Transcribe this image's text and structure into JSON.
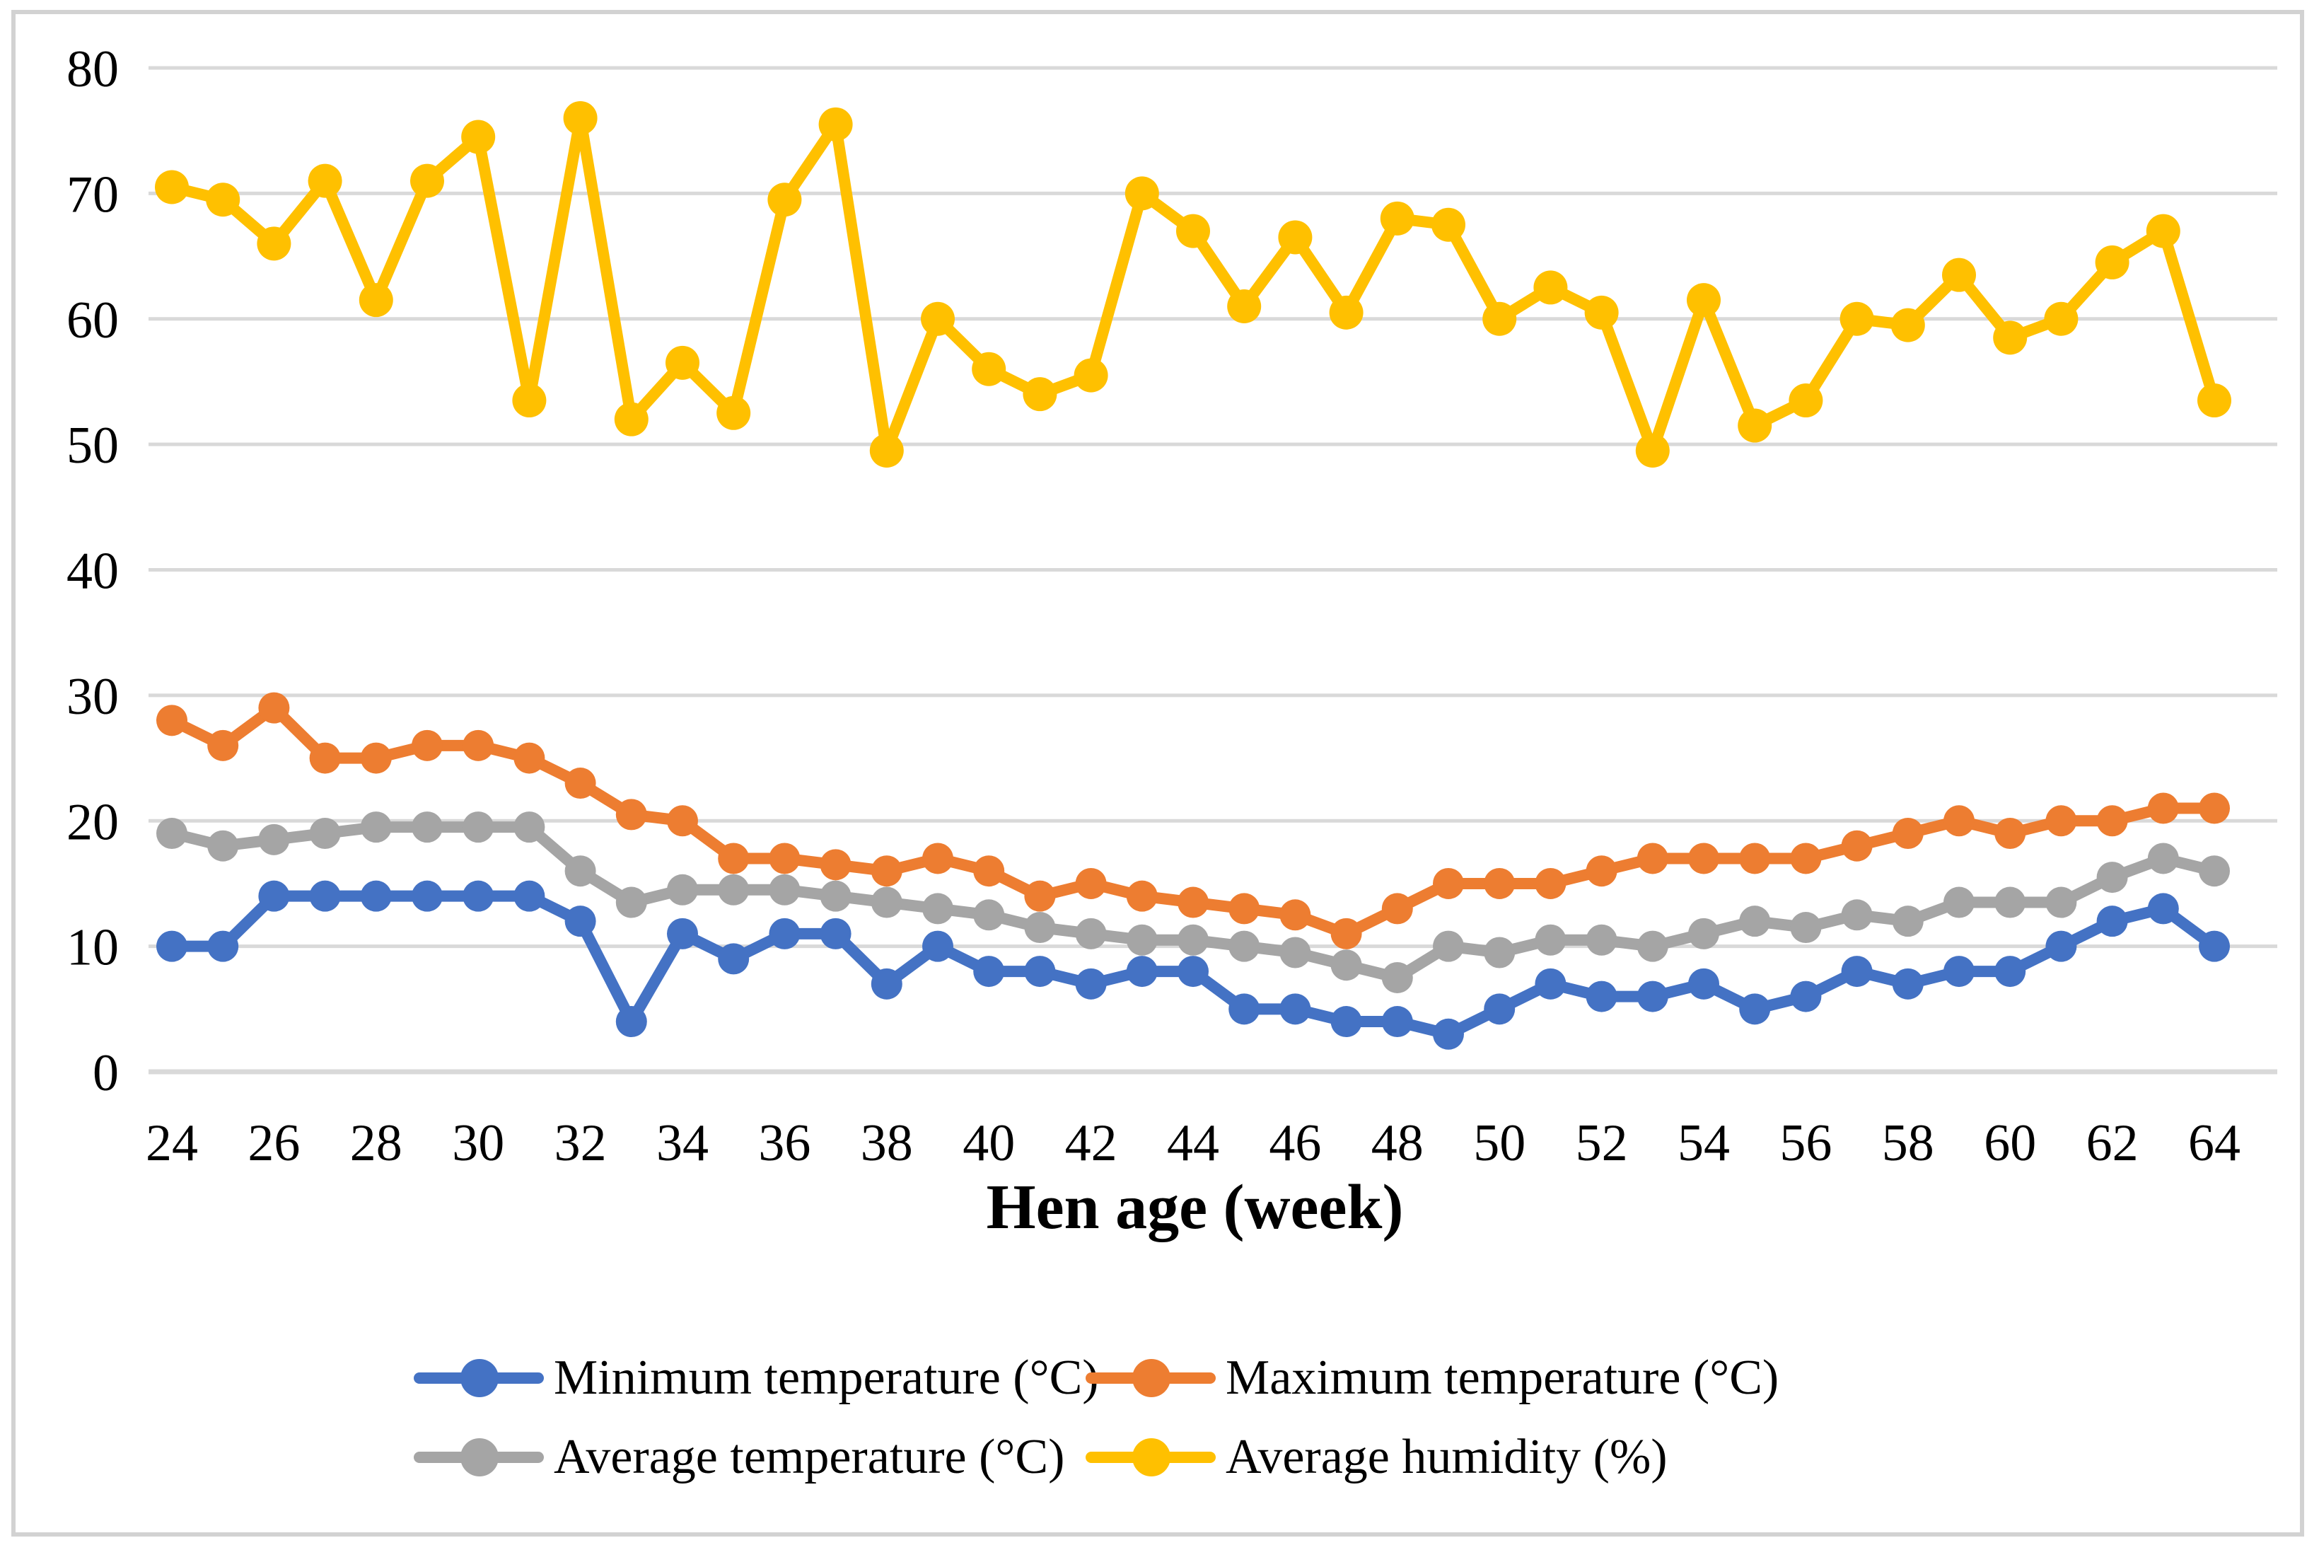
{
  "figure": {
    "background": "#ffffff",
    "frame_color": "#d2d2d2",
    "gridline_color": "#d9d9d9",
    "text_color": "#000000"
  },
  "chart_data": {
    "type": "line",
    "title": "",
    "xlabel": "Hen age (week)",
    "ylabel": "",
    "ylim": [
      0,
      80
    ],
    "y_ticks": [
      0,
      10,
      20,
      30,
      40,
      50,
      60,
      70,
      80
    ],
    "x": [
      24,
      25,
      26,
      27,
      28,
      29,
      30,
      31,
      32,
      33,
      34,
      35,
      36,
      37,
      38,
      39,
      40,
      41,
      42,
      43,
      44,
      45,
      46,
      47,
      48,
      49,
      50,
      51,
      52,
      53,
      54,
      55,
      56,
      57,
      58,
      59,
      60,
      61,
      62,
      63,
      64
    ],
    "x_tick_labels": [
      24,
      26,
      28,
      30,
      32,
      34,
      36,
      38,
      40,
      42,
      44,
      46,
      48,
      50,
      52,
      54,
      56,
      58,
      60,
      62,
      64
    ],
    "grid": true,
    "legend_position": "bottom",
    "series": [
      {
        "name": "Minimum temperature (°C)",
        "slug": "minimum-temperature",
        "color": "#4472c4",
        "values": [
          10,
          10,
          14,
          14,
          14,
          14,
          14,
          14,
          12,
          4,
          11,
          9,
          11,
          11,
          7,
          10,
          8,
          8,
          7,
          8,
          8,
          5,
          5,
          4,
          4,
          3,
          5,
          7,
          6,
          6,
          7,
          5,
          6,
          8,
          7,
          8,
          8,
          10,
          12,
          13,
          10
        ]
      },
      {
        "name": "Maximum temperature (°C)",
        "slug": "maximum-temperature",
        "color": "#ed7d31",
        "values": [
          28,
          26,
          29,
          25,
          25,
          26,
          26,
          25,
          23,
          20.5,
          20,
          17,
          17,
          16.5,
          16,
          17,
          16,
          14,
          15,
          14,
          13.5,
          13,
          12.5,
          11,
          13,
          15,
          15,
          15,
          16,
          17,
          17,
          17,
          17,
          18,
          19,
          20,
          19,
          20,
          20,
          21,
          21
        ]
      },
      {
        "name": "Average temperature (°C)",
        "slug": "average-temperature",
        "color": "#a5a5a5",
        "values": [
          19,
          18,
          18.5,
          19,
          19.5,
          19.5,
          19.5,
          19.5,
          16,
          13.5,
          14.5,
          14.5,
          14.5,
          14,
          13.5,
          13,
          12.5,
          11.5,
          11,
          10.5,
          10.5,
          10,
          9.5,
          8.5,
          7.5,
          10,
          9.5,
          10.5,
          10.5,
          10,
          11,
          12,
          11.5,
          12.5,
          12,
          13.5,
          13.5,
          13.5,
          15.5,
          17,
          16
        ]
      },
      {
        "name": "Average humidity (%)",
        "slug": "average-humidity",
        "color": "#ffc000",
        "values": [
          70.5,
          69.5,
          66,
          71,
          61.5,
          71,
          74.5,
          53.5,
          76,
          52,
          56.5,
          52.5,
          69.5,
          75.5,
          49.5,
          60,
          56,
          54,
          55.5,
          70,
          67,
          61,
          66.5,
          60.5,
          68,
          67.5,
          60,
          62.5,
          60.5,
          49.5,
          61.5,
          51.5,
          53.5,
          60,
          59.5,
          63.5,
          58.5,
          60,
          64.5,
          67,
          53.5
        ]
      }
    ],
    "legend_rows": [
      [
        0,
        1
      ],
      [
        2,
        3
      ]
    ]
  }
}
